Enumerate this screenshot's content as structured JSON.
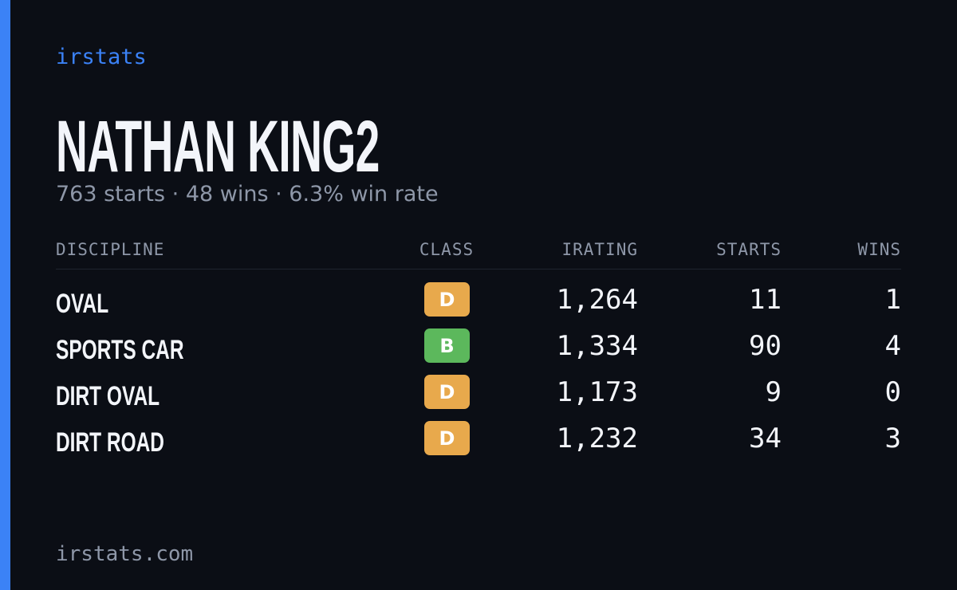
{
  "brand": "irstats",
  "profile": {
    "name": "NATHAN KING2",
    "summary": "763 starts · 48 wins · 6.3% win rate"
  },
  "table": {
    "headers": [
      "DISCIPLINE",
      "CLASS",
      "IRATING",
      "STARTS",
      "WINS"
    ],
    "rows": [
      {
        "discipline": "OVAL",
        "class": "D",
        "class_color": "#e8a94c",
        "irating": "1,264",
        "starts": "11",
        "wins": "1"
      },
      {
        "discipline": "SPORTS CAR",
        "class": "B",
        "class_color": "#5cb85c",
        "irating": "1,334",
        "starts": "90",
        "wins": "4"
      },
      {
        "discipline": "DIRT OVAL",
        "class": "D",
        "class_color": "#e8a94c",
        "irating": "1,173",
        "starts": "9",
        "wins": "0"
      },
      {
        "discipline": "DIRT ROAD",
        "class": "D",
        "class_color": "#e8a94c",
        "irating": "1,232",
        "starts": "34",
        "wins": "3"
      }
    ]
  },
  "footer": "irstats.com"
}
